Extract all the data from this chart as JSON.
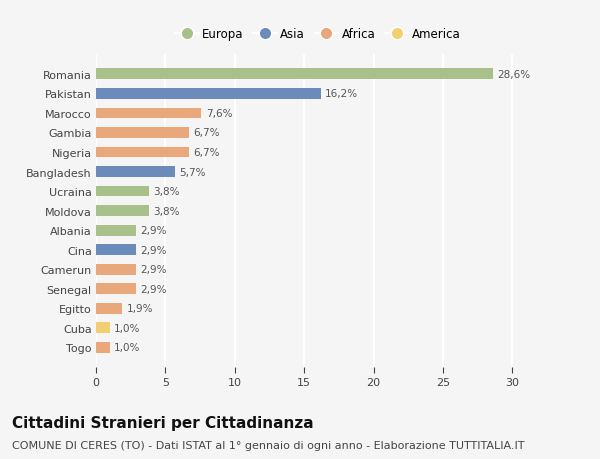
{
  "countries": [
    "Romania",
    "Pakistan",
    "Marocco",
    "Gambia",
    "Nigeria",
    "Bangladesh",
    "Ucraina",
    "Moldova",
    "Albania",
    "Cina",
    "Camerun",
    "Senegal",
    "Egitto",
    "Cuba",
    "Togo"
  ],
  "values": [
    28.6,
    16.2,
    7.6,
    6.7,
    6.7,
    5.7,
    3.8,
    3.8,
    2.9,
    2.9,
    2.9,
    2.9,
    1.9,
    1.0,
    1.0
  ],
  "labels": [
    "28,6%",
    "16,2%",
    "7,6%",
    "6,7%",
    "6,7%",
    "5,7%",
    "3,8%",
    "3,8%",
    "2,9%",
    "2,9%",
    "2,9%",
    "2,9%",
    "1,9%",
    "1,0%",
    "1,0%"
  ],
  "continents": [
    "Europa",
    "Asia",
    "Africa",
    "Africa",
    "Africa",
    "Asia",
    "Europa",
    "Europa",
    "Europa",
    "Asia",
    "Africa",
    "Africa",
    "Africa",
    "America",
    "Africa"
  ],
  "colors": {
    "Europa": "#a8c08a",
    "Asia": "#6b8cba",
    "Africa": "#e8a87c",
    "America": "#f0d070"
  },
  "legend_order": [
    "Europa",
    "Asia",
    "Africa",
    "America"
  ],
  "xlim": [
    0,
    32
  ],
  "xticks": [
    0,
    5,
    10,
    15,
    20,
    25,
    30
  ],
  "title": "Cittadini Stranieri per Cittadinanza",
  "subtitle": "COMUNE DI CERES (TO) - Dati ISTAT al 1° gennaio di ogni anno - Elaborazione TUTTITALIA.IT",
  "bg_color": "#f5f5f5",
  "grid_color": "#ffffff",
  "bar_height": 0.55,
  "title_fontsize": 11,
  "subtitle_fontsize": 8,
  "label_fontsize": 7.5,
  "tick_fontsize": 8,
  "legend_fontsize": 8.5
}
